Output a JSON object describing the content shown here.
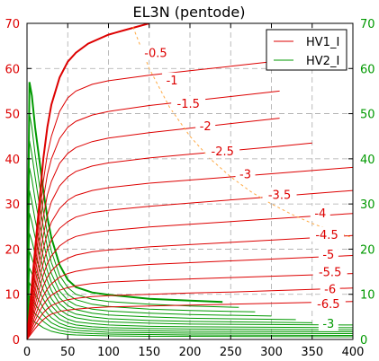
{
  "chart_data": {
    "type": "line",
    "title": "EL3N (pentode)",
    "xlim": [
      0,
      400
    ],
    "ylim": [
      0,
      70
    ],
    "y2lim": [
      0,
      70
    ],
    "x_ticks": [
      0,
      50,
      100,
      150,
      200,
      250,
      300,
      350,
      400
    ],
    "y_ticks": [
      0,
      10,
      20,
      30,
      40,
      50,
      60,
      70
    ],
    "y2_ticks": [
      0,
      10,
      20,
      30,
      40,
      50,
      60,
      70
    ],
    "grid": true,
    "legend_position": "top-right",
    "colors": {
      "hv1": "#dd0000",
      "hv2": "#009900",
      "power_limit": "#ffaa44",
      "frame": "#000000",
      "grid": "#aaaaaa"
    },
    "legend": [
      {
        "label": "HV1_I",
        "color": "#dd0000"
      },
      {
        "label": "HV2_I",
        "color": "#009900"
      }
    ],
    "hv1_labels": [
      {
        "text": "-0.5",
        "x": 158,
        "y": 63.5
      },
      {
        "text": "-1",
        "x": 178,
        "y": 57.5
      },
      {
        "text": "-1.5",
        "x": 198,
        "y": 52.3
      },
      {
        "text": "-2",
        "x": 219,
        "y": 47.3
      },
      {
        "text": "-2.5",
        "x": 240,
        "y": 41.8
      },
      {
        "text": "-3",
        "x": 268,
        "y": 36.7
      },
      {
        "text": "-3.5",
        "x": 310,
        "y": 32.1
      },
      {
        "text": "-4",
        "x": 360,
        "y": 28.0
      },
      {
        "text": "-4.5",
        "x": 368,
        "y": 23.3
      },
      {
        "text": "-5",
        "x": 370,
        "y": 18.9
      },
      {
        "text": "-5.5",
        "x": 372,
        "y": 15.0
      },
      {
        "text": "-6",
        "x": 372,
        "y": 11.2
      },
      {
        "text": "-6.5",
        "x": 370,
        "y": 8.0
      }
    ],
    "hv2_labels": [
      {
        "text": "-3",
        "x": 370,
        "y": 3.6
      }
    ],
    "hv1_series": [
      {
        "x": [
          0,
          5,
          10,
          15,
          20,
          25,
          30,
          40,
          50,
          60,
          75,
          100,
          120,
          150
        ],
        "y": [
          0,
          10,
          20,
          30,
          40,
          47,
          52,
          58,
          61.5,
          63.5,
          65.5,
          67.5,
          68.5,
          70
        ]
      },
      {
        "x": [
          0,
          5,
          10,
          15,
          20,
          25,
          30,
          40,
          50,
          60,
          80,
          100,
          150,
          200,
          250,
          300
        ],
        "y": [
          0,
          9,
          18,
          27,
          35,
          41,
          45,
          50.5,
          53.5,
          55,
          56.5,
          57.3,
          58.5,
          59.5,
          60.5,
          61.5
        ]
      },
      {
        "x": [
          0,
          5,
          10,
          15,
          20,
          25,
          30,
          40,
          50,
          60,
          80,
          100,
          150,
          200,
          250,
          310
        ],
        "y": [
          0,
          8,
          16,
          24,
          31,
          36.5,
          40,
          44.5,
          47,
          48.3,
          49.7,
          50.5,
          51.8,
          52.8,
          53.8,
          55
        ]
      },
      {
        "x": [
          0,
          5,
          10,
          15,
          20,
          25,
          30,
          40,
          50,
          60,
          80,
          100,
          150,
          200,
          250,
          310
        ],
        "y": [
          0,
          7,
          14,
          21,
          27,
          32,
          35,
          39,
          41.2,
          42.5,
          43.8,
          44.6,
          45.8,
          46.8,
          47.8,
          49
        ]
      },
      {
        "x": [
          0,
          5,
          10,
          15,
          20,
          25,
          30,
          40,
          50,
          60,
          80,
          100,
          150,
          200,
          250,
          300,
          350
        ],
        "y": [
          0,
          6,
          12,
          18,
          23,
          27.5,
          30.5,
          34,
          36,
          37.2,
          38.4,
          39.1,
          40.2,
          41,
          41.8,
          42.6,
          43.5
        ]
      },
      {
        "x": [
          0,
          5,
          10,
          15,
          20,
          25,
          30,
          40,
          50,
          60,
          80,
          100,
          150,
          200,
          250,
          300,
          350,
          400
        ],
        "y": [
          0,
          5.2,
          10.5,
          15.5,
          20,
          23.5,
          26,
          29,
          30.8,
          31.9,
          33,
          33.6,
          34.6,
          35.3,
          36,
          36.7,
          37.4,
          38.1
        ]
      },
      {
        "x": [
          0,
          5,
          10,
          15,
          20,
          25,
          30,
          40,
          50,
          60,
          80,
          100,
          150,
          200,
          250,
          300,
          350,
          400
        ],
        "y": [
          0,
          4.5,
          9,
          13.2,
          17,
          20,
          22,
          24.6,
          26.1,
          27.1,
          28.1,
          28.6,
          29.5,
          30.2,
          30.9,
          31.6,
          32.3,
          33
        ]
      },
      {
        "x": [
          0,
          5,
          10,
          15,
          20,
          25,
          30,
          40,
          50,
          60,
          80,
          100,
          150,
          200,
          250,
          300,
          350,
          400
        ],
        "y": [
          0,
          3.8,
          7.6,
          11.2,
          14.3,
          16.8,
          18.5,
          20.7,
          22,
          22.8,
          23.6,
          24.1,
          24.9,
          25.5,
          26.1,
          26.7,
          27.3,
          27.9
        ]
      },
      {
        "x": [
          0,
          5,
          10,
          15,
          20,
          25,
          30,
          40,
          50,
          60,
          80,
          100,
          150,
          200,
          250,
          300,
          350,
          400
        ],
        "y": [
          0,
          3.2,
          6.4,
          9.3,
          11.8,
          13.8,
          15.2,
          17,
          18,
          18.7,
          19.4,
          19.8,
          20.5,
          21,
          21.5,
          22,
          22.5,
          23
        ]
      },
      {
        "x": [
          0,
          5,
          10,
          15,
          20,
          25,
          30,
          40,
          50,
          60,
          80,
          100,
          150,
          200,
          250,
          300,
          350,
          400
        ],
        "y": [
          0,
          2.6,
          5.2,
          7.6,
          9.6,
          11.2,
          12.3,
          13.8,
          14.6,
          15.1,
          15.7,
          16,
          16.6,
          17,
          17.4,
          17.8,
          18.2,
          18.6
        ]
      },
      {
        "x": [
          0,
          5,
          10,
          15,
          20,
          25,
          30,
          40,
          50,
          60,
          80,
          100,
          150,
          200,
          250,
          300,
          350,
          400
        ],
        "y": [
          0,
          2.1,
          4.2,
          6.1,
          7.7,
          8.9,
          9.8,
          10.9,
          11.5,
          11.9,
          12.4,
          12.7,
          13.1,
          13.4,
          13.7,
          14,
          14.3,
          14.6
        ]
      },
      {
        "x": [
          0,
          5,
          10,
          15,
          20,
          25,
          30,
          40,
          50,
          60,
          80,
          100,
          150,
          200,
          250,
          300,
          350,
          400
        ],
        "y": [
          0,
          1.6,
          3.2,
          4.7,
          5.9,
          6.8,
          7.5,
          8.3,
          8.8,
          9.1,
          9.5,
          9.7,
          10,
          10.3,
          10.5,
          10.8,
          11.1,
          11.4
        ]
      },
      {
        "x": [
          0,
          5,
          10,
          15,
          20,
          25,
          30,
          40,
          50,
          60,
          80,
          100,
          150,
          200,
          250,
          300,
          350,
          400
        ],
        "y": [
          0,
          1.2,
          2.4,
          3.5,
          4.4,
          5.1,
          5.6,
          6.2,
          6.5,
          6.7,
          7,
          7.2,
          7.4,
          7.6,
          7.8,
          8,
          8.2,
          8.4
        ]
      }
    ],
    "hv2_series": [
      {
        "x": [
          0,
          3,
          6,
          10,
          15,
          20,
          25,
          30,
          40,
          50,
          60,
          80,
          100,
          150,
          200,
          240
        ],
        "y": [
          0,
          57,
          54,
          47,
          40,
          33,
          27,
          22.5,
          16.5,
          13.2,
          11.6,
          10.4,
          9.9,
          9,
          8.6,
          8.3
        ]
      },
      {
        "x": [
          0,
          3,
          6,
          10,
          15,
          20,
          25,
          30,
          40,
          50,
          60,
          80,
          100,
          150,
          200,
          260
        ],
        "y": [
          0,
          50,
          47,
          41,
          34.5,
          28.5,
          23.5,
          19.5,
          14.2,
          11.5,
          10,
          8.9,
          8.4,
          7.8,
          7.4,
          7.1
        ]
      },
      {
        "x": [
          0,
          3,
          6,
          10,
          15,
          20,
          25,
          30,
          40,
          50,
          60,
          80,
          100,
          150,
          200,
          280
        ],
        "y": [
          0,
          44,
          41,
          36,
          30,
          25,
          20.5,
          17,
          12.4,
          10,
          8.8,
          7.8,
          7.3,
          6.7,
          6.4,
          6.1
        ]
      },
      {
        "x": [
          0,
          3,
          6,
          10,
          15,
          20,
          25,
          30,
          40,
          50,
          60,
          80,
          100,
          150,
          200,
          300
        ],
        "y": [
          0,
          38,
          35.5,
          31,
          26,
          21.5,
          17.7,
          14.6,
          10.7,
          8.7,
          7.6,
          6.7,
          6.3,
          5.8,
          5.5,
          5.2
        ]
      },
      {
        "x": [
          0,
          3,
          6,
          10,
          15,
          20,
          25,
          30,
          40,
          50,
          60,
          80,
          100,
          150,
          200,
          330
        ],
        "y": [
          0,
          33,
          30.5,
          26.5,
          22.2,
          18.4,
          15.2,
          12.6,
          9.2,
          7.5,
          6.6,
          5.8,
          5.4,
          5,
          4.7,
          4.4
        ]
      },
      {
        "x": [
          0,
          3,
          6,
          10,
          15,
          20,
          25,
          30,
          40,
          50,
          60,
          80,
          100,
          150,
          200,
          350
        ],
        "y": [
          0,
          28,
          26,
          22.7,
          19,
          15.7,
          13,
          10.8,
          7.9,
          6.4,
          5.6,
          5,
          4.6,
          4.2,
          4,
          3.7
        ]
      },
      {
        "x": [
          0,
          3,
          6,
          10,
          15,
          20,
          25,
          30,
          40,
          50,
          60,
          80,
          100,
          150,
          200,
          400
        ],
        "y": [
          0,
          23.5,
          21.8,
          19,
          15.9,
          13.2,
          10.9,
          9,
          6.6,
          5.4,
          4.8,
          4.2,
          3.9,
          3.6,
          3.4,
          3.2
        ]
      },
      {
        "x": [
          0,
          3,
          6,
          10,
          15,
          20,
          25,
          30,
          40,
          50,
          60,
          80,
          100,
          150,
          200,
          400
        ],
        "y": [
          0,
          19.5,
          18,
          15.7,
          13.2,
          10.9,
          9,
          7.5,
          5.5,
          4.5,
          3.9,
          3.5,
          3.2,
          2.9,
          2.8,
          2.6
        ]
      },
      {
        "x": [
          0,
          3,
          6,
          10,
          15,
          20,
          25,
          30,
          40,
          50,
          60,
          80,
          100,
          150,
          200,
          400
        ],
        "y": [
          0,
          15.8,
          14.6,
          12.7,
          10.7,
          8.9,
          7.4,
          6.1,
          4.5,
          3.7,
          3.2,
          2.8,
          2.6,
          2.4,
          2.3,
          2.1
        ]
      },
      {
        "x": [
          0,
          3,
          6,
          10,
          15,
          20,
          25,
          30,
          40,
          50,
          60,
          80,
          100,
          150,
          200,
          400
        ],
        "y": [
          0,
          12.5,
          11.6,
          10.1,
          8.5,
          7,
          5.8,
          4.8,
          3.6,
          2.9,
          2.6,
          2.3,
          2.1,
          1.9,
          1.8,
          1.7
        ]
      },
      {
        "x": [
          0,
          3,
          6,
          10,
          15,
          20,
          25,
          30,
          40,
          50,
          60,
          80,
          100,
          150,
          200,
          400
        ],
        "y": [
          0,
          9.6,
          8.9,
          7.8,
          6.5,
          5.4,
          4.5,
          3.7,
          2.8,
          2.3,
          2,
          1.8,
          1.6,
          1.5,
          1.4,
          1.3
        ]
      },
      {
        "x": [
          0,
          3,
          6,
          10,
          15,
          20,
          25,
          30,
          40,
          50,
          60,
          80,
          100,
          150,
          200,
          400
        ],
        "y": [
          0,
          7,
          6.5,
          5.7,
          4.8,
          4,
          3.3,
          2.7,
          2,
          1.7,
          1.5,
          1.3,
          1.2,
          1.1,
          1,
          0.9
        ]
      },
      {
        "x": [
          0,
          3,
          6,
          10,
          15,
          20,
          25,
          30,
          40,
          50,
          60,
          80,
          100,
          150,
          200,
          400
        ],
        "y": [
          0,
          4.6,
          4.3,
          3.8,
          3.2,
          2.6,
          2.2,
          1.8,
          1.4,
          1.1,
          1,
          0.9,
          0.8,
          0.7,
          0.7,
          0.6
        ]
      }
    ],
    "power_limit": {
      "x": [
        130,
        150,
        175,
        200,
        225,
        250,
        275,
        300,
        325,
        350,
        375,
        400
      ],
      "y": [
        69.2,
        60,
        51.4,
        45,
        40,
        36,
        32.7,
        30,
        27.7,
        25.7,
        24,
        22.5
      ]
    }
  }
}
